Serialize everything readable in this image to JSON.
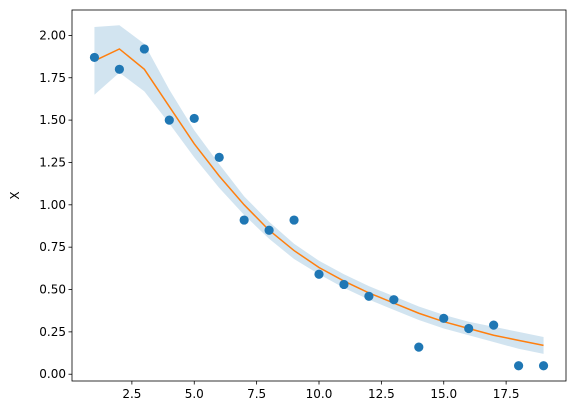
{
  "chart_data": {
    "type": "scatter",
    "title": "",
    "xlabel": "",
    "ylabel": "X",
    "xlim": [
      0.1,
      19.9
    ],
    "ylim": [
      -0.04,
      2.15
    ],
    "grid": false,
    "xticks": [
      2.5,
      5.0,
      7.5,
      10.0,
      12.5,
      15.0,
      17.5
    ],
    "xtick_labels": [
      "2.5",
      "5.0",
      "7.5",
      "10.0",
      "12.5",
      "15.0",
      "17.5"
    ],
    "yticks": [
      0.0,
      0.25,
      0.5,
      0.75,
      1.0,
      1.25,
      1.5,
      1.75,
      2.0
    ],
    "ytick_labels": [
      "0.00",
      "0.25",
      "0.50",
      "0.75",
      "1.00",
      "1.25",
      "1.50",
      "1.75",
      "2.00"
    ],
    "scatter": {
      "color": "#1f77b4",
      "x": [
        1,
        2,
        3,
        4,
        5,
        6,
        7,
        8,
        9,
        10,
        11,
        12,
        13,
        14,
        15,
        16,
        17,
        18,
        19
      ],
      "y": [
        1.87,
        1.8,
        1.92,
        1.5,
        1.51,
        1.28,
        0.91,
        0.85,
        0.91,
        0.59,
        0.53,
        0.46,
        0.44,
        0.16,
        0.33,
        0.27,
        0.29,
        0.05,
        0.05
      ]
    },
    "fit_line": {
      "color": "#ff7f0e",
      "x": [
        1,
        2,
        3,
        4,
        5,
        6,
        7,
        8,
        9,
        10,
        11,
        12,
        13,
        14,
        15,
        16,
        17,
        18,
        19
      ],
      "y": [
        1.85,
        1.92,
        1.8,
        1.58,
        1.36,
        1.17,
        1.0,
        0.85,
        0.73,
        0.63,
        0.55,
        0.48,
        0.42,
        0.36,
        0.31,
        0.27,
        0.23,
        0.2,
        0.17
      ]
    },
    "band": {
      "color": "#1f77b4",
      "opacity": 0.2,
      "x": [
        1,
        2,
        3,
        4,
        5,
        6,
        7,
        8,
        9,
        10,
        11,
        12,
        13,
        14,
        15,
        16,
        17,
        18,
        19
      ],
      "upper": [
        2.05,
        2.06,
        1.95,
        1.68,
        1.44,
        1.24,
        1.05,
        0.9,
        0.77,
        0.67,
        0.59,
        0.52,
        0.46,
        0.4,
        0.35,
        0.31,
        0.28,
        0.25,
        0.22
      ],
      "lower": [
        1.65,
        1.78,
        1.67,
        1.48,
        1.28,
        1.1,
        0.94,
        0.8,
        0.68,
        0.59,
        0.51,
        0.44,
        0.38,
        0.32,
        0.27,
        0.23,
        0.19,
        0.15,
        0.12
      ]
    }
  }
}
